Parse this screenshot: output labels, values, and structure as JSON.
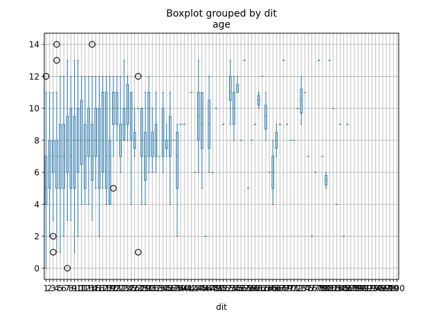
{
  "chart_data": {
    "type": "boxplot",
    "suptitle": "Boxplot grouped by dit",
    "title": "age",
    "xlabel": "dit",
    "ylabel": "",
    "ylim": [
      -0.7,
      14.7
    ],
    "yticks": [
      0,
      2,
      4,
      6,
      8,
      10,
      12,
      14
    ],
    "grid": true,
    "colors": {
      "box": "#1f77b4",
      "median": "#2ca02c",
      "grid": "#b0b0b0",
      "axis": "#000000"
    },
    "xtick_labels_note": "x tick labels are overlapping dit values (1, 2, ... 100)",
    "categories": [
      "1",
      "2",
      "3",
      "4",
      "5",
      "6",
      "7",
      "8",
      "9",
      "10",
      "11",
      "12",
      "13",
      "14",
      "15",
      "16",
      "17",
      "18",
      "19",
      "20",
      "21",
      "22",
      "23",
      "24",
      "25",
      "26",
      "27",
      "28",
      "29",
      "30",
      "31",
      "32",
      "33",
      "34",
      "35",
      "36",
      "37",
      "38",
      "39",
      "40",
      "41",
      "42",
      "43",
      "44",
      "45",
      "46",
      "47",
      "48",
      "49",
      "50",
      "51",
      "52",
      "53",
      "54",
      "55",
      "56",
      "57",
      "58",
      "59",
      "60",
      "61",
      "62",
      "63",
      "64",
      "65",
      "66",
      "67",
      "68",
      "69",
      "70",
      "71",
      "72",
      "73",
      "74",
      "75",
      "76",
      "77",
      "78",
      "79",
      "80",
      "81",
      "82",
      "83",
      "84",
      "85",
      "86",
      "87",
      "88",
      "89",
      "90",
      "91",
      "92",
      "93",
      "94",
      "95",
      "96",
      "97",
      "98",
      "99",
      "100"
    ],
    "boxes": [
      {
        "x": 1,
        "whislo": 0,
        "q1": 4,
        "med": 5,
        "q3": 7,
        "whishi": 11,
        "fliers": [
          12
        ]
      },
      {
        "x": 2,
        "whislo": 2,
        "q1": 5,
        "med": 7,
        "q3": 8,
        "whishi": 11,
        "fliers": []
      },
      {
        "x": 3,
        "whislo": 3,
        "q1": 6,
        "med": 7,
        "q3": 8,
        "whishi": 11,
        "fliers": [
          1,
          2
        ]
      },
      {
        "x": 4,
        "whislo": 1,
        "q1": 5,
        "med": 7,
        "q3": 8,
        "whishi": 11,
        "fliers": [
          13,
          14
        ]
      },
      {
        "x": 5,
        "whislo": 1,
        "q1": 5,
        "med": 7,
        "q3": 9,
        "whishi": 12,
        "fliers": []
      },
      {
        "x": 6,
        "whislo": 2,
        "q1": 5,
        "med": 7,
        "q3": 9,
        "whishi": 12,
        "fliers": []
      },
      {
        "x": 7,
        "whislo": 3,
        "q1": 6,
        "med": 8,
        "q3": 9.5,
        "whishi": 13,
        "fliers": [
          0
        ]
      },
      {
        "x": 8,
        "whislo": 3,
        "q1": 5,
        "med": 7,
        "q3": 10,
        "whishi": 12,
        "fliers": []
      },
      {
        "x": 9,
        "whislo": 1,
        "q1": 5,
        "med": 8,
        "q3": 9.5,
        "whishi": 13,
        "fliers": []
      },
      {
        "x": 10,
        "whislo": 2,
        "q1": 6,
        "med": 8,
        "q3": 10,
        "whishi": 13,
        "fliers": []
      },
      {
        "x": 11,
        "whislo": 4,
        "q1": 6.5,
        "med": 8,
        "q3": 10.5,
        "whishi": 12,
        "fliers": []
      },
      {
        "x": 12,
        "whislo": 4,
        "q1": 5,
        "med": 7,
        "q3": 9,
        "whishi": 12,
        "fliers": []
      },
      {
        "x": 13,
        "whislo": 4,
        "q1": 7,
        "med": 8,
        "q3": 10,
        "whishi": 12,
        "fliers": []
      },
      {
        "x": 14,
        "whislo": 3,
        "q1": 5.5,
        "med": 7,
        "q3": 9,
        "whishi": 12,
        "fliers": [
          14
        ]
      },
      {
        "x": 15,
        "whislo": 5,
        "q1": 7,
        "med": 8,
        "q3": 10,
        "whishi": 12,
        "fliers": []
      },
      {
        "x": 16,
        "whislo": 2,
        "q1": 5,
        "med": 7,
        "q3": 10,
        "whishi": 12,
        "fliers": []
      },
      {
        "x": 17,
        "whislo": 5,
        "q1": 6,
        "med": 8,
        "q3": 11,
        "whishi": 12,
        "fliers": []
      },
      {
        "x": 18,
        "whislo": 4,
        "q1": 5,
        "med": 7,
        "q3": 11,
        "whishi": 12,
        "fliers": []
      },
      {
        "x": 19,
        "whislo": 4,
        "q1": 4,
        "med": 7,
        "q3": 8,
        "whishi": 12,
        "fliers": []
      },
      {
        "x": 20,
        "whislo": 7,
        "q1": 9,
        "med": 10,
        "q3": 11,
        "whishi": 12,
        "fliers": [
          5
        ]
      },
      {
        "x": 21,
        "whislo": 8,
        "q1": 9,
        "med": 10,
        "q3": 11,
        "whishi": 12,
        "fliers": []
      },
      {
        "x": 22,
        "whislo": 6,
        "q1": 7,
        "med": 8,
        "q3": 9,
        "whishi": 12,
        "fliers": []
      },
      {
        "x": 23,
        "whislo": 8,
        "q1": 8,
        "med": 9,
        "q3": 10,
        "whishi": 13,
        "fliers": []
      },
      {
        "x": 24,
        "whislo": 8,
        "q1": 9,
        "med": 10,
        "q3": 11.5,
        "whishi": 12,
        "fliers": []
      },
      {
        "x": 25,
        "whislo": 4,
        "q1": 8,
        "med": 10,
        "q3": 11,
        "whishi": 11,
        "fliers": []
      },
      {
        "x": 26,
        "whislo": 7,
        "q1": 7.5,
        "med": 8,
        "q3": 8.5,
        "whishi": 10,
        "fliers": []
      },
      {
        "x": 27,
        "whislo": 10,
        "q1": 10,
        "med": 10,
        "q3": 10,
        "whishi": 10,
        "fliers": [
          12,
          1
        ]
      },
      {
        "x": 28,
        "whislo": 4,
        "q1": 7,
        "med": 8,
        "q3": 10,
        "whishi": 10,
        "fliers": []
      },
      {
        "x": 29,
        "whislo": 4,
        "q1": 5.5,
        "med": 7,
        "q3": 8.5,
        "whishi": 11,
        "fliers": []
      },
      {
        "x": 30,
        "whislo": 6,
        "q1": 7,
        "med": 10,
        "q3": 11,
        "whishi": 12,
        "fliers": []
      },
      {
        "x": 31,
        "whislo": 6,
        "q1": 7,
        "med": 8,
        "q3": 8.5,
        "whishi": 10,
        "fliers": []
      },
      {
        "x": 32,
        "whislo": 6,
        "q1": 7,
        "med": 8,
        "q3": 9,
        "whishi": 11,
        "fliers": []
      },
      {
        "x": 33,
        "whislo": 7,
        "q1": 7,
        "med": 7,
        "q3": 7,
        "whishi": 7,
        "fliers": []
      },
      {
        "x": 34,
        "whislo": 6,
        "q1": 7,
        "med": 8,
        "q3": 10,
        "whishi": 11,
        "fliers": []
      },
      {
        "x": 35,
        "whislo": 7,
        "q1": 7.5,
        "med": 8,
        "q3": 8,
        "whishi": 9,
        "fliers": []
      },
      {
        "x": 36,
        "whislo": 4,
        "q1": 7,
        "med": 8,
        "q3": 9.5,
        "whishi": 11,
        "fliers": []
      },
      {
        "x": 37,
        "whislo": 8,
        "q1": 8,
        "med": 8,
        "q3": 8,
        "whishi": 8,
        "fliers": []
      },
      {
        "x": 38,
        "whislo": 2,
        "q1": 5,
        "med": 7,
        "q3": 8.5,
        "whishi": 9,
        "fliers": []
      },
      {
        "x": 39,
        "whislo": 9,
        "q1": 9,
        "med": 9,
        "q3": 9,
        "whishi": 9,
        "fliers": []
      },
      {
        "x": 40,
        "whislo": 9,
        "q1": 9,
        "med": 9,
        "q3": 9,
        "whishi": 9,
        "fliers": []
      },
      {
        "x": 42,
        "whislo": 11,
        "q1": 11,
        "med": 11,
        "q3": 11,
        "whishi": 11,
        "fliers": []
      },
      {
        "x": 43,
        "whislo": 6,
        "q1": 6,
        "med": 6,
        "q3": 6,
        "whishi": 6,
        "fliers": []
      },
      {
        "x": 44,
        "whislo": 6,
        "q1": 8,
        "med": 9.5,
        "q3": 11,
        "whishi": 13,
        "fliers": []
      },
      {
        "x": 45,
        "whislo": 5,
        "q1": 7.5,
        "med": 9,
        "q3": 11,
        "whishi": 11,
        "fliers": []
      },
      {
        "x": 46,
        "whislo": 2,
        "q1": 2,
        "med": 2,
        "q3": 2,
        "whishi": 2,
        "fliers": []
      },
      {
        "x": 47,
        "whislo": 6,
        "q1": 7.5,
        "med": 9,
        "q3": 10.5,
        "whishi": 12,
        "fliers": []
      },
      {
        "x": 48,
        "whislo": 6,
        "q1": 6,
        "med": 6,
        "q3": 6,
        "whishi": 6,
        "fliers": []
      },
      {
        "x": 49,
        "whislo": 10,
        "q1": 10,
        "med": 10,
        "q3": 10,
        "whishi": 10,
        "fliers": []
      },
      {
        "x": 51,
        "whislo": 9,
        "q1": 9,
        "med": 9,
        "q3": 9,
        "whishi": 9,
        "fliers": []
      },
      {
        "x": 53,
        "whislo": 9,
        "q1": 10.5,
        "med": 11,
        "q3": 12,
        "whishi": 13,
        "fliers": []
      },
      {
        "x": 54,
        "whislo": 8,
        "q1": 9,
        "med": 10,
        "q3": 11,
        "whishi": 12,
        "fliers": []
      },
      {
        "x": 55,
        "whislo": 11,
        "q1": 11,
        "med": 11.5,
        "q3": 11.5,
        "whishi": 12,
        "fliers": []
      },
      {
        "x": 56,
        "whislo": 8,
        "q1": 8,
        "med": 8,
        "q3": 8,
        "whishi": 8,
        "fliers": []
      },
      {
        "x": 57,
        "whislo": 13,
        "q1": 13,
        "med": 13,
        "q3": 13,
        "whishi": 13,
        "fliers": []
      },
      {
        "x": 58,
        "whislo": 5,
        "q1": 5,
        "med": 5,
        "q3": 5,
        "whishi": 5,
        "fliers": []
      },
      {
        "x": 59,
        "whislo": 8,
        "q1": 8,
        "med": 8,
        "q3": 8,
        "whishi": 8,
        "fliers": []
      },
      {
        "x": 60,
        "whislo": 9,
        "q1": 9,
        "med": 9,
        "q3": 9,
        "whishi": 9,
        "fliers": []
      },
      {
        "x": 61,
        "whislo": 10,
        "q1": 10.2,
        "med": 10.5,
        "q3": 10.8,
        "whishi": 11,
        "fliers": []
      },
      {
        "x": 62,
        "whislo": 12,
        "q1": 12,
        "med": 12,
        "q3": 12,
        "whishi": 12,
        "fliers": []
      },
      {
        "x": 63,
        "whislo": 8,
        "q1": 8.7,
        "med": 9.5,
        "q3": 10.2,
        "whishi": 11,
        "fliers": []
      },
      {
        "x": 64,
        "whislo": 6,
        "q1": 6,
        "med": 6,
        "q3": 6,
        "whishi": 6,
        "fliers": []
      },
      {
        "x": 65,
        "whislo": 4,
        "q1": 5,
        "med": 6,
        "q3": 7,
        "whishi": 8,
        "fliers": []
      },
      {
        "x": 66,
        "whislo": 7,
        "q1": 7.5,
        "med": 8,
        "q3": 8.5,
        "whishi": 9,
        "fliers": []
      },
      {
        "x": 67,
        "whislo": 9,
        "q1": 9,
        "med": 9,
        "q3": 9,
        "whishi": 9,
        "fliers": []
      },
      {
        "x": 68,
        "whislo": 13,
        "q1": 13,
        "med": 13,
        "q3": 13,
        "whishi": 13,
        "fliers": []
      },
      {
        "x": 69,
        "whislo": 9,
        "q1": 9,
        "med": 9,
        "q3": 9,
        "whishi": 9,
        "fliers": []
      },
      {
        "x": 70,
        "whislo": 8,
        "q1": 8,
        "med": 8,
        "q3": 8,
        "whishi": 8,
        "fliers": []
      },
      {
        "x": 71,
        "whislo": 8,
        "q1": 8,
        "med": 8,
        "q3": 8,
        "whishi": 8,
        "fliers": []
      },
      {
        "x": 72,
        "whislo": 10,
        "q1": 10,
        "med": 10,
        "q3": 10,
        "whishi": 10,
        "fliers": []
      },
      {
        "x": 73,
        "whislo": 9,
        "q1": 9.7,
        "med": 10.5,
        "q3": 11.2,
        "whishi": 12,
        "fliers": []
      },
      {
        "x": 74,
        "whislo": 11,
        "q1": 11,
        "med": 11,
        "q3": 11,
        "whishi": 11,
        "fliers": []
      },
      {
        "x": 75,
        "whislo": 7,
        "q1": 7,
        "med": 7,
        "q3": 7,
        "whishi": 7,
        "fliers": []
      },
      {
        "x": 76,
        "whislo": 2,
        "q1": 2,
        "med": 2,
        "q3": 2,
        "whishi": 2,
        "fliers": []
      },
      {
        "x": 77,
        "whislo": 6,
        "q1": 6,
        "med": 6,
        "q3": 6,
        "whishi": 6,
        "fliers": []
      },
      {
        "x": 78,
        "whislo": 13,
        "q1": 13,
        "med": 13,
        "q3": 13,
        "whishi": 13,
        "fliers": []
      },
      {
        "x": 79,
        "whislo": 7,
        "q1": 7,
        "med": 7,
        "q3": 7,
        "whishi": 7,
        "fliers": []
      },
      {
        "x": 80,
        "whislo": 5,
        "q1": 5.2,
        "med": 5.5,
        "q3": 5.8,
        "whishi": 6,
        "fliers": []
      },
      {
        "x": 81,
        "whislo": 13,
        "q1": 13,
        "med": 13,
        "q3": 13,
        "whishi": 13,
        "fliers": []
      },
      {
        "x": 82,
        "whislo": 10,
        "q1": 10,
        "med": 10,
        "q3": 10,
        "whishi": 10,
        "fliers": []
      },
      {
        "x": 83,
        "whislo": 4,
        "q1": 4,
        "med": 4,
        "q3": 4,
        "whishi": 4,
        "fliers": []
      },
      {
        "x": 84,
        "whislo": 9,
        "q1": 9,
        "med": 9,
        "q3": 9,
        "whishi": 9,
        "fliers": []
      },
      {
        "x": 85,
        "whislo": 2,
        "q1": 2,
        "med": 2,
        "q3": 2,
        "whishi": 2,
        "fliers": []
      },
      {
        "x": 86,
        "whislo": 9,
        "q1": 9,
        "med": 9,
        "q3": 9,
        "whishi": 9,
        "fliers": []
      }
    ]
  }
}
